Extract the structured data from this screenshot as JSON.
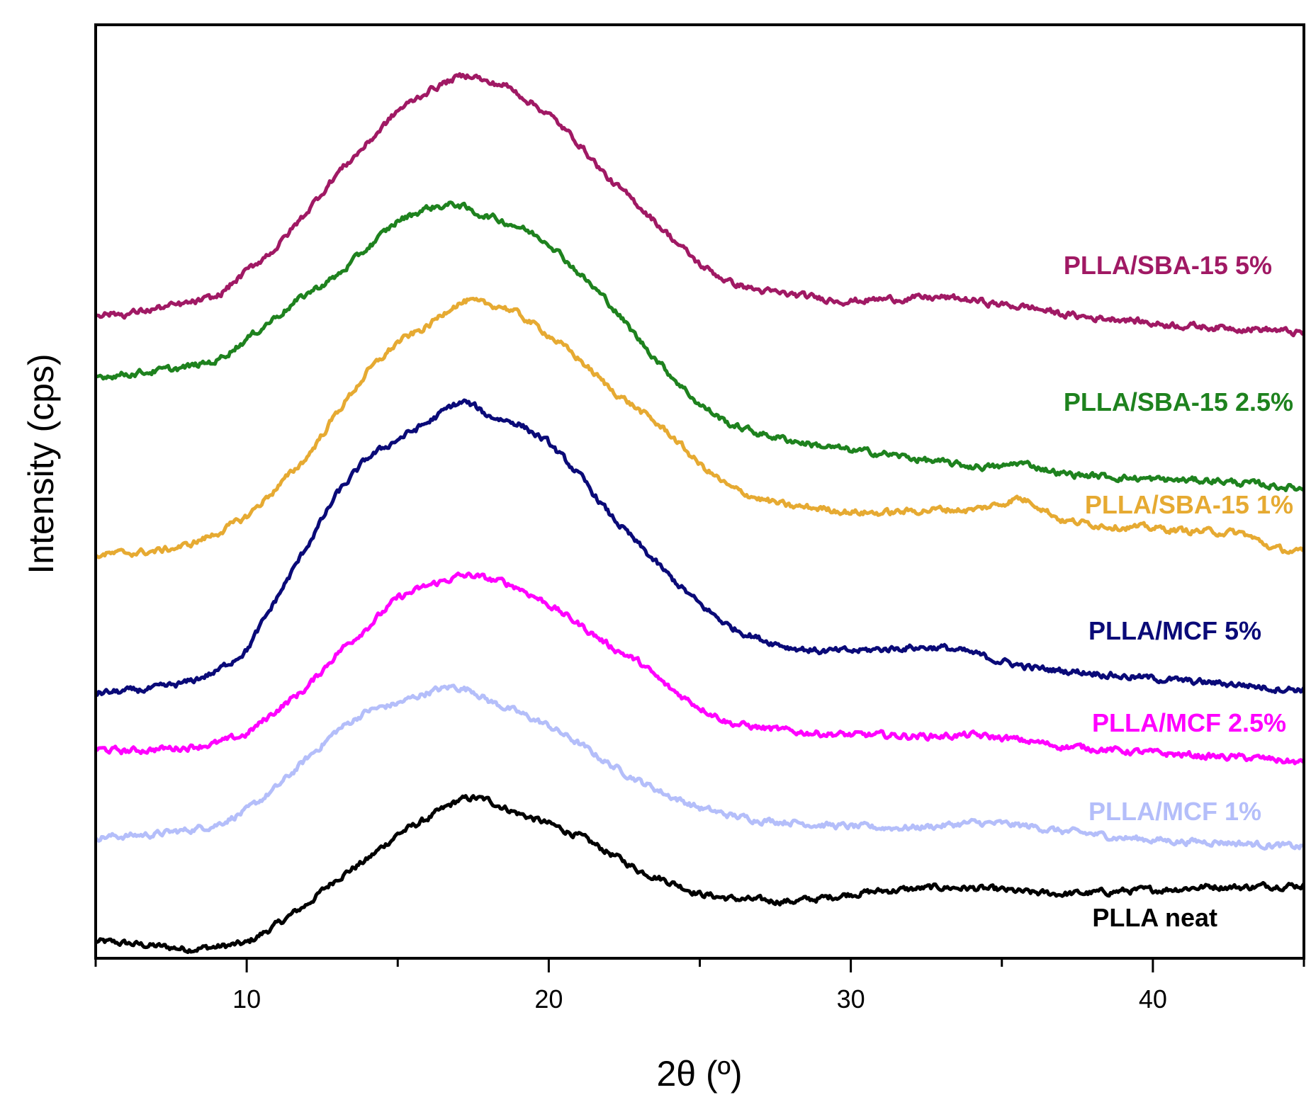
{
  "chart_data": {
    "type": "line",
    "title": "",
    "xlabel": "2θ (º)",
    "ylabel": "Intensity (cps)",
    "xlim": [
      5,
      45
    ],
    "ylim": [
      0,
      100
    ],
    "x_ticks": [
      10,
      20,
      30,
      40
    ],
    "x_minor_ticks": [
      5,
      15,
      25,
      35,
      45
    ],
    "y_ticks_shown": false,
    "legend": "inline-labels-right",
    "series": [
      {
        "name": "PLLA neat",
        "color": "#000000",
        "x": [
          5.0,
          6,
          7,
          8,
          9,
          10,
          11,
          12,
          13,
          14,
          15,
          16,
          17,
          17.5,
          18,
          19,
          20,
          21,
          22,
          23,
          24,
          25,
          26,
          27,
          28,
          29,
          30,
          31,
          32,
          33,
          34,
          35,
          36,
          37,
          38,
          39,
          40,
          41,
          42,
          43,
          44,
          45
        ],
        "y": [
          1.8,
          1.6,
          1.3,
          1.0,
          1.2,
          1.6,
          3.6,
          5.8,
          8.6,
          10.6,
          13.3,
          15.0,
          16.9,
          17.2,
          16.9,
          15.5,
          14.4,
          13.1,
          11.3,
          9.4,
          8.2,
          6.9,
          6.4,
          6.2,
          6.1,
          6.4,
          6.9,
          7.2,
          7.4,
          7.6,
          7.5,
          7.3,
          7.0,
          6.9,
          7.0,
          7.2,
          7.3,
          7.5,
          7.7,
          7.6,
          7.8,
          7.8
        ]
      },
      {
        "name": "PLLA/MCF 1%",
        "color": "#b4befa",
        "x": [
          5.0,
          6,
          7,
          8,
          9,
          10,
          11,
          12,
          13,
          14,
          15,
          16,
          16.8,
          17.5,
          18,
          19,
          20,
          21,
          22,
          23,
          24,
          25,
          26,
          27,
          28,
          29,
          30,
          31,
          32,
          33,
          34,
          35,
          36,
          37,
          38,
          39,
          40,
          41,
          42,
          43,
          44,
          45
        ],
        "y": [
          13.0,
          13.1,
          13.3,
          13.7,
          14.3,
          15.8,
          18.3,
          21.4,
          24.4,
          26.5,
          27.3,
          28.5,
          29.1,
          28.7,
          27.6,
          26.3,
          24.9,
          23.0,
          20.8,
          19.0,
          17.4,
          16.1,
          15.3,
          14.8,
          14.6,
          14.3,
          14.1,
          14.0,
          14.0,
          14.2,
          14.5,
          14.4,
          14.1,
          13.6,
          13.3,
          12.9,
          12.7,
          12.5,
          12.5,
          12.3,
          12.1,
          11.9
        ]
      },
      {
        "name": "PLLA/MCF 2.5%",
        "color": "#ff00ff",
        "x": [
          5.0,
          6,
          7,
          8,
          9,
          10,
          11,
          12,
          13,
          14,
          15,
          16,
          17,
          17.5,
          18,
          18.5,
          19,
          20,
          21,
          22,
          23,
          24,
          25,
          26,
          27,
          28,
          29,
          30,
          31,
          32,
          33,
          34,
          35,
          36,
          37,
          38,
          39,
          40,
          41,
          42,
          43,
          44,
          45
        ],
        "y": [
          22.4,
          22.2,
          22.4,
          22.6,
          23.0,
          24.0,
          26.6,
          29.0,
          32.7,
          35.5,
          38.6,
          39.9,
          40.9,
          41.0,
          40.6,
          40.3,
          39.7,
          37.9,
          35.8,
          33.5,
          31.7,
          28.9,
          26.9,
          25.2,
          24.7,
          24.3,
          24.1,
          23.9,
          23.9,
          23.8,
          23.8,
          23.9,
          23.6,
          23.2,
          22.7,
          22.5,
          22.2,
          22.0,
          21.8,
          21.6,
          21.5,
          21.3,
          20.9
        ]
      },
      {
        "name": "PLLA/MCF 5%",
        "color": "#0a0a78",
        "x": [
          5.0,
          6,
          7,
          8,
          9,
          10,
          11,
          12,
          13,
          14,
          15,
          16,
          16.8,
          17.2,
          17.6,
          18,
          19,
          20,
          21,
          22,
          23,
          24,
          25,
          26,
          27,
          28,
          29,
          30,
          31,
          32,
          33,
          34,
          35,
          36,
          37,
          38,
          39,
          40,
          41,
          42,
          43,
          44,
          45
        ],
        "y": [
          28.4,
          28.6,
          28.9,
          29.5,
          30.7,
          33.0,
          38.6,
          44.2,
          49.8,
          53.6,
          55.6,
          57.4,
          59.2,
          59.6,
          59.0,
          58.1,
          57.3,
          55.2,
          51.8,
          47.6,
          44.2,
          40.9,
          37.9,
          35.5,
          34.2,
          33.3,
          32.9,
          32.9,
          33.1,
          33.3,
          33.3,
          32.7,
          31.8,
          31.1,
          30.8,
          30.6,
          30.2,
          30.0,
          29.7,
          29.5,
          29.3,
          28.9,
          28.8
        ]
      },
      {
        "name": "PLLA/SBA-15 1%",
        "color": "#e6aa32",
        "x": [
          5.0,
          6,
          7,
          8,
          9,
          10,
          11,
          12,
          13,
          14,
          15,
          16,
          16.8,
          17.3,
          17.8,
          18.5,
          19,
          20,
          21,
          22,
          23,
          24,
          25,
          26,
          27,
          28,
          29,
          30,
          31,
          32,
          33,
          34,
          35,
          35.5,
          36,
          37,
          38,
          39,
          40,
          41,
          42,
          43,
          44,
          45
        ],
        "y": [
          43.2,
          43.4,
          43.6,
          44.2,
          45.5,
          47.3,
          50.4,
          53.7,
          58.5,
          62.8,
          66.0,
          67.7,
          69.9,
          70.4,
          70.1,
          69.8,
          69.0,
          66.8,
          64.2,
          61.1,
          58.7,
          56.2,
          52.9,
          50.4,
          49.2,
          48.4,
          48.2,
          47.8,
          47.7,
          47.9,
          48.1,
          48.0,
          48.7,
          49.3,
          48.9,
          46.9,
          46.5,
          46.2,
          46.1,
          45.8,
          45.7,
          45.5,
          43.9,
          43.4
        ]
      },
      {
        "name": "PLLA/SBA-15 2.5%",
        "color": "#1e821e",
        "x": [
          5.0,
          6,
          7,
          8,
          9,
          10,
          11,
          12,
          13,
          14,
          15,
          16,
          16.5,
          17,
          17.5,
          18,
          19,
          20,
          21,
          22,
          23,
          24,
          25,
          26,
          27,
          28,
          29,
          30,
          31,
          32,
          33,
          34,
          35,
          35.5,
          36,
          37,
          38,
          39,
          40,
          41,
          42,
          43,
          44,
          45
        ],
        "y": [
          62.3,
          62.6,
          62.9,
          63.3,
          64.0,
          66.3,
          68.8,
          71.2,
          73.1,
          76.1,
          79.0,
          80.4,
          80.6,
          80.8,
          79.9,
          79.5,
          78.4,
          76.7,
          73.4,
          70.2,
          66.2,
          62.6,
          59.3,
          57.2,
          56.2,
          55.5,
          54.9,
          54.4,
          54.1,
          53.6,
          53.1,
          52.7,
          52.6,
          53.1,
          52.8,
          51.9,
          51.7,
          51.5,
          51.3,
          51.2,
          51.2,
          50.9,
          50.6,
          50.3
        ]
      },
      {
        "name": "PLLA/SBA-15 5%",
        "color": "#a01964",
        "x": [
          5.0,
          6,
          7,
          8,
          9,
          10,
          11,
          12,
          13,
          14,
          15,
          16,
          16.5,
          17,
          17.5,
          18,
          18.5,
          19,
          20,
          21,
          22,
          23,
          24,
          25,
          26,
          27,
          28,
          29,
          30,
          31,
          32,
          33,
          34,
          35,
          36,
          37,
          38,
          39,
          40,
          41,
          42,
          43,
          44,
          45
        ],
        "y": [
          69.1,
          69.0,
          69.6,
          70.1,
          70.8,
          73.6,
          76.2,
          80.0,
          84.1,
          87.3,
          90.8,
          92.9,
          93.7,
          94.4,
          94.7,
          93.7,
          93.6,
          92.6,
          90.4,
          87.3,
          83.4,
          80.6,
          77.4,
          74.3,
          72.4,
          71.5,
          71.1,
          70.7,
          70.4,
          70.6,
          70.7,
          70.8,
          70.5,
          70.0,
          69.7,
          69.0,
          68.6,
          68.5,
          68.0,
          67.8,
          67.6,
          67.5,
          67.3,
          66.9
        ]
      }
    ]
  }
}
